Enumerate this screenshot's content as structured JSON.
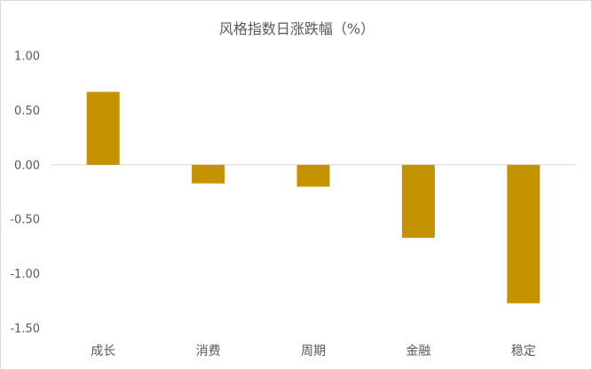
{
  "chart_data": {
    "type": "bar",
    "title": "风格指数日涨跌幅（%）",
    "xlabel": "",
    "ylabel": "",
    "categories": [
      "成长",
      "消费",
      "周期",
      "金融",
      "稳定"
    ],
    "values": [
      0.67,
      -0.17,
      -0.2,
      -0.67,
      -1.27
    ],
    "ylim": [
      -1.5,
      1.0
    ],
    "yticks": [
      "1.00",
      "0.50",
      "0.00",
      "-0.50",
      "-1.00",
      "-1.50"
    ],
    "ytick_values": [
      1.0,
      0.5,
      0.0,
      -0.5,
      -1.0,
      -1.5
    ],
    "grid": false,
    "legend": "none",
    "bar_color": "#C59200",
    "axis_color": "#d9d9d9"
  }
}
